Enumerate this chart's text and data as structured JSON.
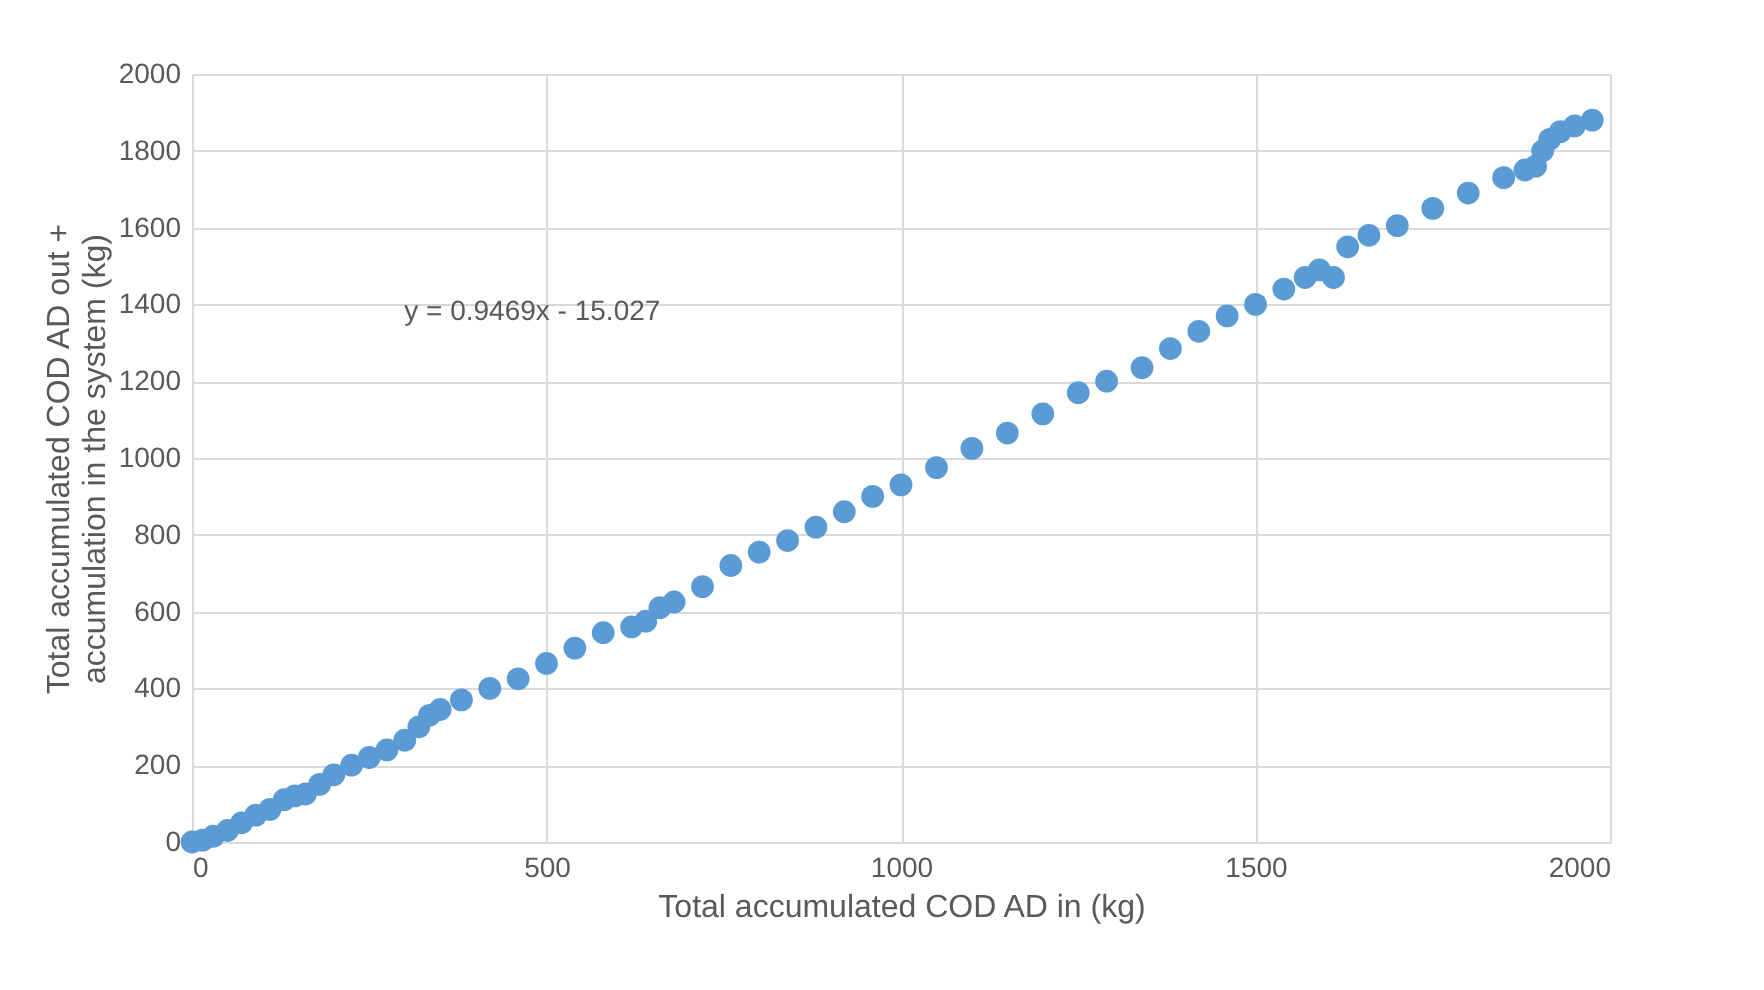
{
  "chart_data": {
    "type": "scatter",
    "xlabel": "Total accumulated COD AD in (kg)",
    "ylabel": "Total accumulated COD AD out + accumulation in the system (kg)",
    "annotations": [
      "y = 0.9469x - 15.027"
    ],
    "x": [
      0,
      15,
      30,
      50,
      70,
      90,
      110,
      130,
      145,
      160,
      180,
      200,
      225,
      250,
      275,
      300,
      320,
      335,
      350,
      380,
      420,
      460,
      500,
      540,
      580,
      620,
      640,
      660,
      680,
      720,
      760,
      800,
      840,
      880,
      920,
      960,
      1000,
      1050,
      1100,
      1150,
      1200,
      1250,
      1290,
      1340,
      1380,
      1420,
      1460,
      1500,
      1540,
      1570,
      1590,
      1610,
      1630,
      1660,
      1700,
      1750,
      1800,
      1850,
      1880,
      1895,
      1905,
      1915,
      1930,
      1950,
      1975
    ],
    "series": [
      {
        "color": "#5b9bd5",
        "values": [
          0,
          5,
          15,
          30,
          50,
          70,
          85,
          110,
          120,
          125,
          150,
          175,
          200,
          220,
          240,
          265,
          300,
          330,
          345,
          370,
          400,
          425,
          465,
          505,
          545,
          560,
          575,
          610,
          625,
          665,
          720,
          755,
          785,
          820,
          860,
          900,
          930,
          975,
          1025,
          1065,
          1115,
          1170,
          1200,
          1235,
          1285,
          1330,
          1370,
          1400,
          1440,
          1470,
          1490,
          1470,
          1550,
          1580,
          1605,
          1650,
          1690,
          1730,
          1750,
          1760,
          1800,
          1830,
          1850,
          1865,
          1880
        ]
      }
    ],
    "xlim": [
      0,
      2000
    ],
    "xticks": [
      0,
      500,
      1000,
      1500,
      2000
    ],
    "ylim": [
      0,
      2000
    ],
    "yticks": [
      0,
      200,
      400,
      600,
      800,
      1000,
      1200,
      1400,
      1600,
      1800,
      2000
    ],
    "grid": true,
    "marker": "circle"
  }
}
